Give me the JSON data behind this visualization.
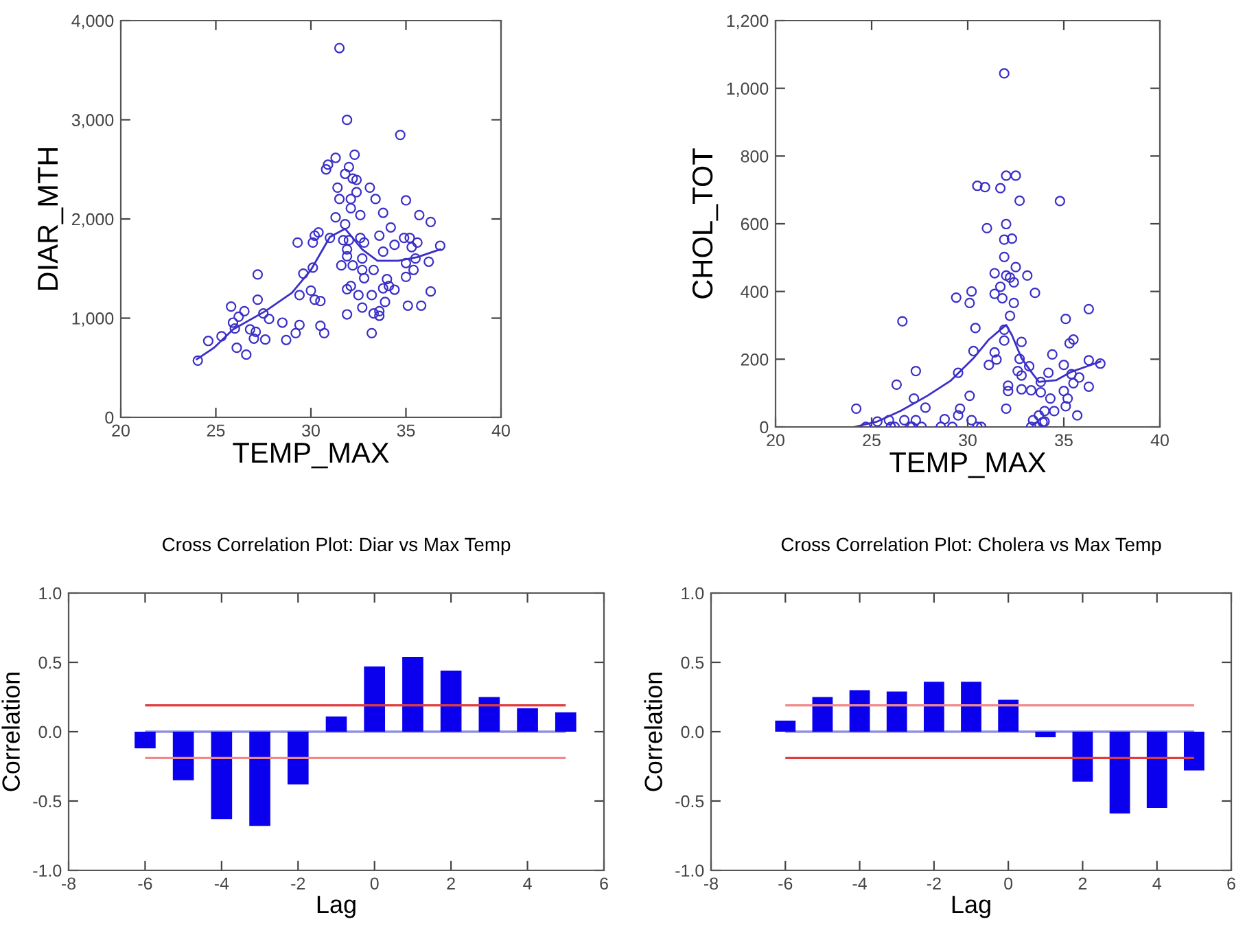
{
  "chart_data": [
    {
      "type": "scatter",
      "xlabel": "TEMP_MAX",
      "ylabel": "DIAR_MTH",
      "xlim": [
        20,
        40
      ],
      "ylim": [
        0,
        4000
      ],
      "xticks": [
        20,
        25,
        30,
        35,
        40
      ],
      "yticks": [
        0,
        {
          "value": 1000,
          "label": "1,000"
        },
        {
          "value": 2000,
          "label": "2,000"
        },
        {
          "value": 3000,
          "label": "3,000"
        },
        {
          "value": 4000,
          "label": "4,000"
        }
      ],
      "grid": false,
      "legend": false,
      "series": [
        {
          "type": "scatter",
          "marker": "circle",
          "color": "#3a2fc8",
          "x": [
            24.05,
            24.6,
            25.3,
            25.8,
            25.9,
            26.0,
            26.1,
            26.2,
            26.5,
            26.6,
            26.8,
            27.0,
            27.1,
            27.2,
            27.2,
            27.5,
            27.6,
            27.8,
            28.5,
            28.7,
            29.2,
            29.4,
            29.3,
            29.4,
            29.6,
            30.0,
            30.1,
            30.1,
            30.2,
            30.2,
            30.4,
            30.5,
            30.5,
            30.7,
            31.0,
            30.8,
            30.9,
            31.3,
            31.3,
            31.4,
            31.5,
            31.5,
            31.6,
            31.7,
            31.8,
            31.8,
            31.9,
            31.9,
            31.9,
            32.0,
            31.9,
            31.9,
            32.0,
            32.1,
            32.1,
            32.1,
            32.2,
            32.2,
            32.3,
            32.4,
            32.4,
            32.5,
            32.6,
            32.6,
            32.7,
            32.7,
            32.7,
            32.8,
            32.8,
            33.1,
            33.2,
            33.2,
            33.3,
            33.3,
            33.4,
            33.6,
            33.6,
            33.6,
            33.8,
            33.8,
            33.8,
            33.9,
            34.0,
            34.1,
            34.2,
            34.4,
            34.4,
            34.7,
            34.9,
            35.0,
            35.0,
            35.0,
            35.1,
            35.2,
            35.3,
            35.4,
            35.5,
            35.6,
            35.7,
            35.8,
            36.2,
            36.3,
            36.3,
            36.8
          ],
          "values": [
            572,
            770,
            817,
            1117,
            955,
            895,
            701,
            1015,
            1070,
            632,
            886,
            794,
            863,
            1440,
            1186,
            1047,
            784,
            992,
            955,
            780,
            849,
            932,
            1762,
            1232,
            1449,
            1278,
            1762,
            1509,
            1186,
            1832,
            1864,
            1172,
            923,
            849,
            1809,
            2500,
            2547,
            2616,
            2016,
            2316,
            2201,
            3723,
            1532,
            1786,
            1947,
            2455,
            1624,
            2999,
            1693,
            2524,
            1292,
            1038,
            1786,
            2201,
            1324,
            2108,
            2408,
            1532,
            2648,
            2394,
            2270,
            1232,
            1809,
            2039,
            1107,
            1601,
            1486,
            1403,
            1762,
            2316,
            849,
            1232,
            1047,
            1486,
            2201,
            1832,
            1024,
            1070,
            1670,
            1301,
            2062,
            1163,
            1393,
            1324,
            1915,
            1739,
            1287,
            2847,
            1809,
            1416,
            1555,
            2187,
            1126,
            1809,
            1716,
            1486,
            1601,
            1762,
            2039,
            1126,
            1569,
            1970,
            1269,
            1730
          ]
        },
        {
          "type": "line",
          "marker": "none",
          "color": "#3a2fc8",
          "x": [
            24.0,
            24.9,
            25.9,
            27.6,
            29.0,
            30.0,
            31.0,
            31.8,
            32.7,
            33.5,
            34.6,
            35.6,
            36.8
          ],
          "values": [
            586,
            701,
            886,
            1070,
            1255,
            1486,
            1818,
            1901,
            1693,
            1578,
            1578,
            1615,
            1693
          ]
        }
      ]
    },
    {
      "type": "scatter",
      "xlabel": "TEMP_MAX",
      "ylabel": "CHOL_TOT",
      "xlim": [
        20,
        40
      ],
      "ylim": [
        0,
        1200
      ],
      "xticks": [
        20,
        25,
        30,
        35,
        40
      ],
      "yticks": [
        0,
        200,
        400,
        600,
        800,
        {
          "value": 1000,
          "label": "1,000"
        },
        {
          "value": 1200,
          "label": "1,200"
        }
      ],
      "grid": false,
      "legend": false,
      "series": [
        {
          "type": "scatter",
          "marker": "circle",
          "color": "#3a2fc8",
          "x": [
            24.2,
            24.7,
            25.3,
            25.9,
            26.0,
            26.2,
            26.3,
            26.6,
            26.7,
            27.0,
            27.1,
            27.2,
            27.3,
            27.3,
            27.6,
            27.8,
            28.6,
            28.8,
            29.2,
            29.4,
            29.5,
            29.5,
            29.6,
            30.1,
            30.1,
            30.2,
            30.2,
            30.3,
            30.4,
            30.5,
            30.5,
            30.7,
            30.9,
            31.0,
            31.1,
            31.4,
            31.4,
            31.4,
            31.5,
            31.7,
            31.7,
            31.8,
            31.9,
            31.9,
            31.9,
            31.9,
            31.9,
            32.0,
            32.0,
            32.0,
            32.0,
            32.1,
            32.1,
            32.2,
            32.2,
            32.3,
            32.4,
            32.4,
            32.5,
            32.5,
            32.6,
            32.7,
            32.7,
            32.8,
            32.8,
            32.8,
            33.1,
            33.2,
            33.3,
            33.3,
            33.4,
            33.5,
            33.6,
            33.7,
            33.8,
            33.8,
            33.9,
            34.0,
            34.0,
            34.2,
            34.3,
            34.4,
            34.5,
            34.8,
            35.0,
            35.0,
            35.1,
            35.1,
            35.2,
            35.3,
            35.4,
            35.5,
            35.5,
            35.7,
            35.8,
            36.3,
            36.3,
            36.3,
            36.9
          ],
          "values": [
            54,
            0,
            16,
            20,
            0,
            0,
            125,
            312,
            20,
            0,
            0,
            84,
            165,
            20,
            0,
            57,
            0,
            23,
            0,
            382,
            160,
            34,
            54,
            366,
            92,
            20,
            400,
            224,
            292,
            712,
            0,
            0,
            708,
            587,
            183,
            454,
            393,
            220,
            199,
            705,
            414,
            380,
            1044,
            502,
            287,
            255,
            553,
            54,
            742,
            599,
            447,
            122,
            106,
            328,
            441,
            556,
            427,
            366,
            472,
            742,
            165,
            668,
            201,
            251,
            152,
            111,
            447,
            179,
            0,
            108,
            20,
            396,
            0,
            34,
            133,
            102,
            14,
            47,
            16,
            160,
            84,
            214,
            47,
            667,
            183,
            106,
            61,
            319,
            84,
            247,
            156,
            258,
            129,
            34,
            146,
            119,
            197,
            348,
            187
          ]
        },
        {
          "type": "line",
          "marker": "none",
          "color": "#3a2fc8",
          "x": [
            24.1,
            25.3,
            26.5,
            27.9,
            29.1,
            30.3,
            31.1,
            31.7,
            32.0,
            32.3,
            32.8,
            33.3,
            33.7,
            34.6,
            35.4,
            36.2,
            36.9
          ],
          "values": [
            0,
            16,
            47,
            92,
            136,
            203,
            258,
            287,
            301,
            271,
            203,
            163,
            133,
            138,
            163,
            179,
            193
          ]
        }
      ]
    },
    {
      "type": "bar",
      "title": "Cross Correlation Plot: Diar vs Max Temp",
      "xlabel": "Lag",
      "ylabel": "Correlation",
      "x": [
        -6,
        -5,
        -4,
        -3,
        -2,
        -1,
        0,
        1,
        2,
        3,
        4,
        5
      ],
      "xlim": [
        -8,
        6
      ],
      "ylim": [
        -1.0,
        1.0
      ],
      "xticks": [
        -8,
        -6,
        -4,
        -2,
        0,
        2,
        4,
        6
      ],
      "yticks": [
        {
          "value": -1.0,
          "label": "-1.0"
        },
        {
          "value": -0.5,
          "label": "-0.5"
        },
        {
          "value": 0.0,
          "label": "0.0"
        },
        {
          "value": 0.5,
          "label": "0.5"
        },
        {
          "value": 1.0,
          "label": "1.0"
        }
      ],
      "grid": false,
      "legend": false,
      "series": [
        {
          "color": "#0a00ee",
          "values": [
            -0.12,
            -0.35,
            -0.63,
            -0.68,
            -0.38,
            0.11,
            0.47,
            0.54,
            0.44,
            0.25,
            0.17,
            0.14
          ]
        }
      ],
      "ref_lines": [
        {
          "axis": "y",
          "value": 0.19,
          "color": "#e03c3c"
        },
        {
          "axis": "y",
          "value": -0.19,
          "color": "#f08a8a"
        },
        {
          "axis": "y",
          "value": 0,
          "color": "#9090e0"
        }
      ]
    },
    {
      "type": "bar",
      "title": "Cross Correlation Plot: Cholera vs Max Temp",
      "xlabel": "Lag",
      "ylabel": "Correlation",
      "x": [
        -6,
        -5,
        -4,
        -3,
        -2,
        -1,
        0,
        1,
        2,
        3,
        4,
        5
      ],
      "xlim": [
        -8,
        6
      ],
      "ylim": [
        -1.0,
        1.0
      ],
      "xticks": [
        -8,
        -6,
        -4,
        -2,
        0,
        2,
        4,
        6
      ],
      "yticks": [
        {
          "value": -1.0,
          "label": "-1.0"
        },
        {
          "value": -0.5,
          "label": "-0.5"
        },
        {
          "value": 0.0,
          "label": "0.0"
        },
        {
          "value": 0.5,
          "label": "0.5"
        },
        {
          "value": 1.0,
          "label": "1.0"
        }
      ],
      "grid": false,
      "legend": false,
      "series": [
        {
          "color": "#0a00ee",
          "values": [
            0.08,
            0.25,
            0.3,
            0.29,
            0.36,
            0.36,
            0.23,
            -0.04,
            -0.36,
            -0.59,
            -0.55,
            -0.28
          ]
        }
      ],
      "ref_lines": [
        {
          "axis": "y",
          "value": 0.19,
          "color": "#f08a8a"
        },
        {
          "axis": "y",
          "value": -0.19,
          "color": "#e03c3c"
        },
        {
          "axis": "y",
          "value": 0,
          "color": "#9090e0"
        }
      ]
    }
  ]
}
